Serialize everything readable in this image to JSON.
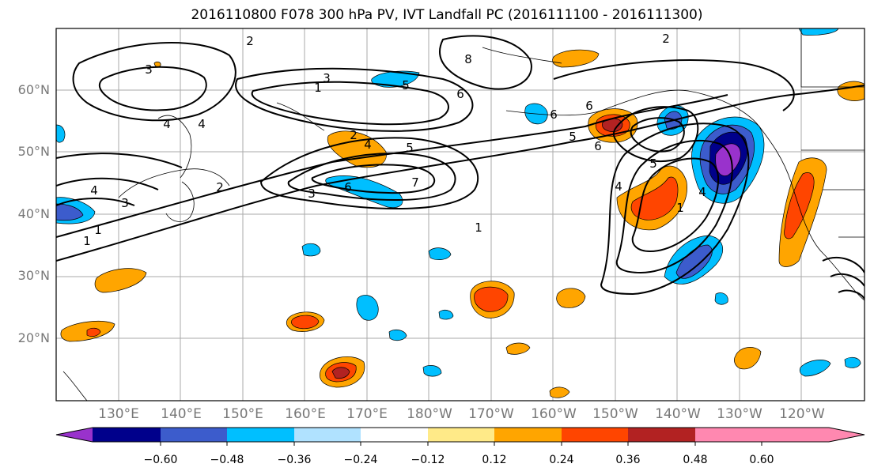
{
  "title": "2016110800 F078 300 hPa PV, IVT Landfall PC (2016111100 - 2016111300)",
  "lat_labels": [
    "60°N",
    "50°N",
    "40°N",
    "30°N",
    "20°N"
  ],
  "lon_labels": [
    "130°E",
    "140°E",
    "150°E",
    "160°E",
    "170°E",
    "180°W",
    "170°W",
    "160°W",
    "150°W",
    "140°W",
    "130°W",
    "120°W"
  ],
  "map_extent": {
    "lon_min": 120,
    "lon_max": 250,
    "lat_min": 10,
    "lat_max": 70
  },
  "contour_labels": [
    "2",
    "2",
    "3",
    "1",
    "4",
    "5",
    "6",
    "7",
    "5",
    "6",
    "5",
    "4",
    "1",
    "5",
    "1",
    "4",
    "3",
    "1",
    "2",
    "3",
    "4",
    "8",
    "6",
    "6",
    "4",
    "4",
    "3",
    "2",
    "1",
    "6"
  ],
  "colorbar": {
    "ticks": [
      "−0.60",
      "−0.48",
      "−0.36",
      "−0.24",
      "−0.12",
      "0.12",
      "0.24",
      "0.36",
      "0.48",
      "0.60"
    ],
    "colors": [
      "#9932cc",
      "#00008b",
      "#3c5ccc",
      "#00bfff",
      "#b0e2ff",
      "#ffffff",
      "#ffea88",
      "#ffa500",
      "#ff4500",
      "#b22222",
      "#ff88b0"
    ]
  },
  "colors": {
    "contour": "#000000",
    "grid": "#aaaaaa",
    "coast": "#000000",
    "label": "#777777"
  }
}
